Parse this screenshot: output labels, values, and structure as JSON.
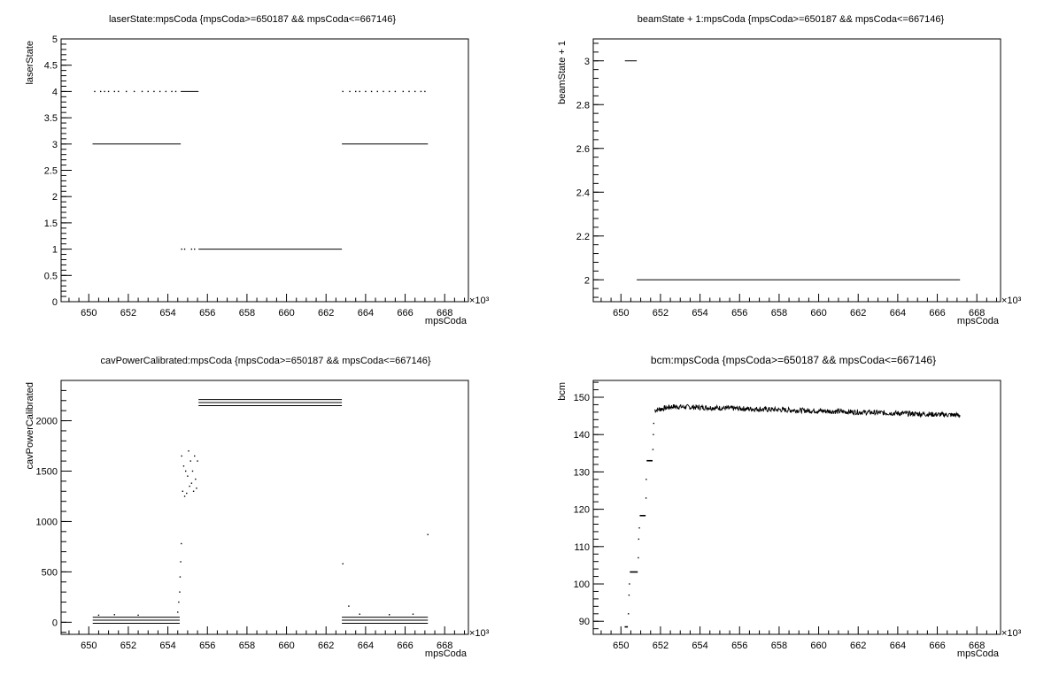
{
  "chart_data": [
    {
      "type": "scatter",
      "title": "laserState:mpsCoda {mpsCoda>=650187 && mpsCoda<=667146}",
      "xlabel": "mpsCoda",
      "ylabel": "laserState",
      "x_multiplier": "×10³",
      "xlim": [
        648.6,
        669.2
      ],
      "ylim": [
        0,
        5
      ],
      "xticks": [
        650,
        652,
        654,
        656,
        658,
        660,
        662,
        664,
        666,
        668
      ],
      "yticks": [
        0,
        0.5,
        1,
        1.5,
        2,
        2.5,
        3,
        3.5,
        4,
        4.5,
        5
      ],
      "ytick_labels": [
        "0",
        "0.5",
        "1",
        "1.5",
        "2",
        "2.5",
        "3",
        "3.5",
        "4",
        "4.5",
        "5"
      ],
      "segments": [
        {
          "x": [
            650.19,
            654.65
          ],
          "y": 3
        },
        {
          "x": [
            655.55,
            662.8
          ],
          "y": 1
        },
        {
          "x": [
            662.8,
            667.15
          ],
          "y": 3
        },
        {
          "x": [
            654.65,
            655.55
          ],
          "y": 4
        }
      ],
      "points": [
        {
          "x": 650.3,
          "y": 4
        },
        {
          "x": 650.6,
          "y": 4
        },
        {
          "x": 650.8,
          "y": 4
        },
        {
          "x": 651.0,
          "y": 4
        },
        {
          "x": 651.3,
          "y": 4
        },
        {
          "x": 651.5,
          "y": 4
        },
        {
          "x": 651.9,
          "y": 4
        },
        {
          "x": 652.3,
          "y": 4
        },
        {
          "x": 652.7,
          "y": 4
        },
        {
          "x": 653.0,
          "y": 4
        },
        {
          "x": 653.3,
          "y": 4
        },
        {
          "x": 653.6,
          "y": 4
        },
        {
          "x": 653.9,
          "y": 4
        },
        {
          "x": 654.2,
          "y": 4
        },
        {
          "x": 654.4,
          "y": 4
        },
        {
          "x": 654.7,
          "y": 1
        },
        {
          "x": 654.85,
          "y": 1
        },
        {
          "x": 655.2,
          "y": 1
        },
        {
          "x": 655.35,
          "y": 1
        },
        {
          "x": 662.85,
          "y": 4
        },
        {
          "x": 663.2,
          "y": 4
        },
        {
          "x": 663.5,
          "y": 4
        },
        {
          "x": 663.7,
          "y": 4
        },
        {
          "x": 664.0,
          "y": 4
        },
        {
          "x": 664.3,
          "y": 4
        },
        {
          "x": 664.6,
          "y": 4
        },
        {
          "x": 664.9,
          "y": 4
        },
        {
          "x": 665.2,
          "y": 4
        },
        {
          "x": 665.5,
          "y": 4
        },
        {
          "x": 665.9,
          "y": 4
        },
        {
          "x": 666.2,
          "y": 4
        },
        {
          "x": 666.5,
          "y": 4
        },
        {
          "x": 666.8,
          "y": 4
        },
        {
          "x": 667.0,
          "y": 4
        }
      ]
    },
    {
      "type": "scatter",
      "title": "beamState + 1:mpsCoda {mpsCoda>=650187 && mpsCoda<=667146}",
      "xlabel": "mpsCoda",
      "ylabel": "beamState + 1",
      "x_multiplier": "×10³",
      "xlim": [
        648.6,
        669.2
      ],
      "ylim": [
        1.9,
        3.1
      ],
      "xticks": [
        650,
        652,
        654,
        656,
        658,
        660,
        662,
        664,
        666,
        668
      ],
      "yticks": [
        2,
        2.2,
        2.4,
        2.6,
        2.8,
        3
      ],
      "ytick_labels": [
        "2",
        "2.2",
        "2.4",
        "2.6",
        "2.8",
        "3"
      ],
      "segments": [
        {
          "x": [
            650.2,
            650.8
          ],
          "y": 3
        },
        {
          "x": [
            650.8,
            667.15
          ],
          "y": 2
        }
      ],
      "points": []
    },
    {
      "type": "scatter",
      "title": "cavPowerCalibrated:mpsCoda {mpsCoda>=650187 && mpsCoda<=667146}",
      "xlabel": "mpsCoda",
      "ylabel": "cavPowerCalibrated",
      "x_multiplier": "×10³",
      "xlim": [
        648.6,
        669.2
      ],
      "ylim": [
        -120,
        2400
      ],
      "xticks": [
        650,
        652,
        654,
        656,
        658,
        660,
        662,
        664,
        666,
        668
      ],
      "yticks": [
        0,
        500,
        1000,
        1500,
        2000
      ],
      "ytick_labels": [
        "0",
        "500",
        "1000",
        "1500",
        "2000"
      ],
      "segments": [
        {
          "x": [
            650.2,
            654.6
          ],
          "y": -10
        },
        {
          "x": [
            650.2,
            654.6
          ],
          "y": 20
        },
        {
          "x": [
            650.2,
            654.6
          ],
          "y": 50
        },
        {
          "x": [
            655.55,
            662.8
          ],
          "y": 2150
        },
        {
          "x": [
            655.55,
            662.8
          ],
          "y": 2180
        },
        {
          "x": [
            655.55,
            662.8
          ],
          "y": 2210
        },
        {
          "x": [
            662.8,
            667.15
          ],
          "y": -10
        },
        {
          "x": [
            662.8,
            667.15
          ],
          "y": 20
        },
        {
          "x": [
            662.8,
            667.15
          ],
          "y": 50
        }
      ],
      "points": [
        {
          "x": 654.5,
          "y": 100
        },
        {
          "x": 654.55,
          "y": 200
        },
        {
          "x": 654.6,
          "y": 300
        },
        {
          "x": 654.62,
          "y": 450
        },
        {
          "x": 654.65,
          "y": 600
        },
        {
          "x": 654.68,
          "y": 780
        },
        {
          "x": 654.7,
          "y": 1650
        },
        {
          "x": 654.75,
          "y": 1300
        },
        {
          "x": 654.8,
          "y": 1550
        },
        {
          "x": 654.85,
          "y": 1250
        },
        {
          "x": 654.9,
          "y": 1500
        },
        {
          "x": 654.95,
          "y": 1280
        },
        {
          "x": 655.0,
          "y": 1450
        },
        {
          "x": 655.05,
          "y": 1700
        },
        {
          "x": 655.1,
          "y": 1350
        },
        {
          "x": 655.15,
          "y": 1600
        },
        {
          "x": 655.2,
          "y": 1380
        },
        {
          "x": 655.25,
          "y": 1500
        },
        {
          "x": 655.3,
          "y": 1300
        },
        {
          "x": 655.35,
          "y": 1650
        },
        {
          "x": 655.4,
          "y": 1420
        },
        {
          "x": 655.45,
          "y": 1330
        },
        {
          "x": 655.5,
          "y": 1600
        },
        {
          "x": 662.85,
          "y": 580
        },
        {
          "x": 663.15,
          "y": 160
        },
        {
          "x": 667.15,
          "y": 870
        },
        {
          "x": 650.5,
          "y": 70
        },
        {
          "x": 651.3,
          "y": 75
        },
        {
          "x": 652.5,
          "y": 70
        },
        {
          "x": 663.7,
          "y": 80
        },
        {
          "x": 665.2,
          "y": 75
        },
        {
          "x": 666.4,
          "y": 80
        }
      ]
    },
    {
      "type": "line",
      "title": "bcm:mpsCoda {mpsCoda>=650187 && mpsCoda<=667146}",
      "xlabel": "mpsCoda",
      "ylabel": "bcm",
      "x_multiplier": "×10³",
      "xlim": [
        648.6,
        669.2
      ],
      "ylim": [
        86.5,
        154.5
      ],
      "xticks": [
        650,
        652,
        654,
        656,
        658,
        660,
        662,
        664,
        666,
        668
      ],
      "yticks": [
        90,
        100,
        110,
        120,
        130,
        140,
        150
      ],
      "ytick_labels": [
        "90",
        "100",
        "110",
        "120",
        "130",
        "140",
        "150"
      ],
      "steps": [
        {
          "x": [
            650.19,
            650.35
          ],
          "y": 88.5
        },
        {
          "x": [
            650.45,
            650.85
          ],
          "y": 103.2
        },
        {
          "x": [
            650.95,
            651.25
          ],
          "y": 118.3
        },
        {
          "x": [
            651.3,
            651.6
          ],
          "y": 133.0
        }
      ],
      "points": [
        {
          "x": 650.38,
          "y": 92
        },
        {
          "x": 650.41,
          "y": 97
        },
        {
          "x": 650.43,
          "y": 100
        },
        {
          "x": 650.88,
          "y": 107
        },
        {
          "x": 650.9,
          "y": 112
        },
        {
          "x": 650.93,
          "y": 115
        },
        {
          "x": 651.27,
          "y": 123
        },
        {
          "x": 651.28,
          "y": 128
        },
        {
          "x": 651.62,
          "y": 136
        },
        {
          "x": 651.64,
          "y": 140
        },
        {
          "x": 651.66,
          "y": 143
        }
      ],
      "plateau": {
        "x": [
          651.7,
          667.15
        ],
        "start": 146.5,
        "peak": 147.5,
        "peak_x": 652.6,
        "end": 145.2
      }
    }
  ]
}
